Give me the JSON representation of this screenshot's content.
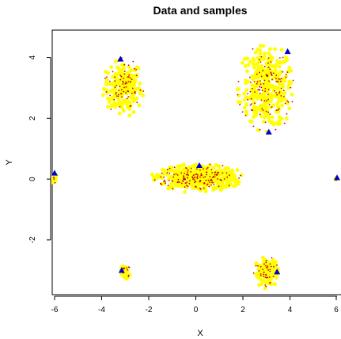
{
  "chart_data": {
    "type": "scatter",
    "title": "Data and samples",
    "xlabel": "X",
    "ylabel": "Y",
    "xlim": [
      -6.1,
      6.1
    ],
    "ylim": [
      -3.8,
      4.9
    ],
    "x_ticks": [
      -6,
      -4,
      -2,
      0,
      2,
      4,
      6
    ],
    "y_ticks": [
      -2,
      0,
      2,
      4
    ],
    "x_tick_labels": [
      "-6",
      "-4",
      "-2",
      "0",
      "2",
      "4",
      "6"
    ],
    "y_tick_labels": [
      "-2",
      "0",
      "2",
      "4"
    ],
    "grid": false,
    "colors": {
      "data": "#ffff00",
      "samples": "#cc0000",
      "markers": "#0000cc"
    },
    "clusters": [
      {
        "cx": -3.1,
        "cy": 3.0,
        "rx": 0.9,
        "ry": 1.0,
        "n": 200
      },
      {
        "cx": 3.0,
        "cy": 3.0,
        "rx": 1.3,
        "ry": 1.45,
        "n": 320
      },
      {
        "cx": 0.1,
        "cy": 0.05,
        "rx": 2.0,
        "ry": 0.5,
        "n": 420
      },
      {
        "cx": -6.0,
        "cy": 0.0,
        "rx": 0.15,
        "ry": 0.18,
        "n": 14
      },
      {
        "cx": 6.0,
        "cy": 0.0,
        "rx": 0.1,
        "ry": 0.1,
        "n": 4
      },
      {
        "cx": -3.0,
        "cy": -3.05,
        "rx": 0.25,
        "ry": 0.25,
        "n": 30
      },
      {
        "cx": 3.0,
        "cy": -3.05,
        "rx": 0.55,
        "ry": 0.55,
        "n": 110
      }
    ],
    "triangles": [
      {
        "x": -3.2,
        "y": 3.95
      },
      {
        "x": 3.9,
        "y": 4.2
      },
      {
        "x": 3.1,
        "y": 1.55
      },
      {
        "x": 0.15,
        "y": 0.45
      },
      {
        "x": -6.0,
        "y": 0.2
      },
      {
        "x": 6.0,
        "y": 0.05
      },
      {
        "x": -3.15,
        "y": -3.0
      },
      {
        "x": 3.45,
        "y": -3.05
      }
    ]
  }
}
